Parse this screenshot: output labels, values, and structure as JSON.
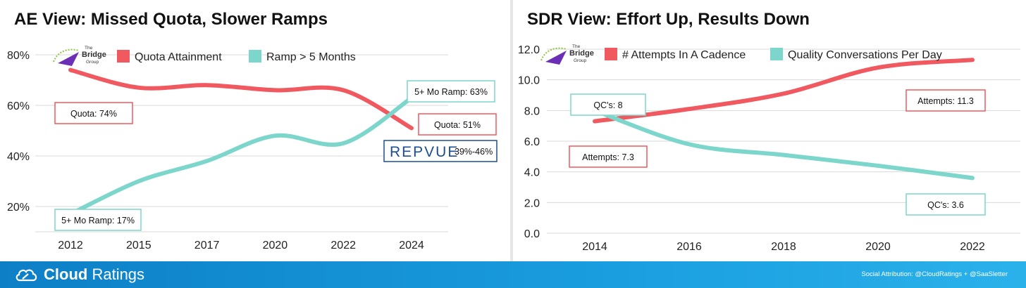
{
  "footer": {
    "brand_bold": "Cloud",
    "brand_rest": "Ratings",
    "attribution": "Social Attribution: @CloudRatings + @SaaSletter"
  },
  "logo": {
    "line1": "The",
    "line2": "Bridge",
    "line3": "Group"
  },
  "chart_data": [
    {
      "type": "line",
      "title": "AE View: Missed Quota, Slower Ramps",
      "categories": [
        "2012",
        "2015",
        "2017",
        "2020",
        "2022",
        "2024"
      ],
      "yticks": [
        "20%",
        "40%",
        "60%",
        "80%"
      ],
      "ylim": [
        10,
        85
      ],
      "legend_position": "top",
      "grid": "horizontal",
      "series": [
        {
          "name": "Quota Attainment",
          "color": "#f0595f",
          "values": [
            74,
            67,
            68,
            66,
            66,
            51
          ]
        },
        {
          "name": "Ramp > 5 Months",
          "color": "#7dd6cb",
          "values": [
            17,
            30,
            38,
            48,
            45,
            63
          ]
        }
      ],
      "annotations": [
        {
          "text": "Quota: 74%",
          "color": "#f0595f"
        },
        {
          "text": "Quota: 51%",
          "color": "#f0595f"
        },
        {
          "text": "5+ Mo Ramp: 17%",
          "color": "#7dd6cb"
        },
        {
          "text": "5+ Mo Ramp: 63%",
          "color": "#7dd6cb"
        }
      ],
      "badge": {
        "brand": "REPVUE",
        "range": "39%-46%",
        "color": "#1d4f8f"
      }
    },
    {
      "type": "line",
      "title": "SDR View: Effort Up, Results Down",
      "categories": [
        "2014",
        "2016",
        "2018",
        "2020",
        "2022"
      ],
      "yticks": [
        "0.0",
        "2.0",
        "4.0",
        "6.0",
        "8.0",
        "10.0",
        "12.0"
      ],
      "ylim": [
        0,
        12
      ],
      "legend_position": "top",
      "grid": "horizontal",
      "series": [
        {
          "name": "# Attempts In A Cadence",
          "color": "#f0595f",
          "values": [
            7.3,
            8.1,
            9.1,
            10.8,
            11.3
          ]
        },
        {
          "name": "Quality Conversations Per Day",
          "color": "#7dd6cb",
          "values": [
            8.0,
            5.8,
            5.1,
            4.4,
            3.6
          ]
        }
      ],
      "annotations": [
        {
          "text": "QC's: 8",
          "color": "#7dd6cb"
        },
        {
          "text": "Attempts: 7.3",
          "color": "#f0595f"
        },
        {
          "text": "Attempts: 11.3",
          "color": "#f0595f"
        },
        {
          "text": "QC's: 3.6",
          "color": "#7dd6cb"
        }
      ]
    }
  ]
}
